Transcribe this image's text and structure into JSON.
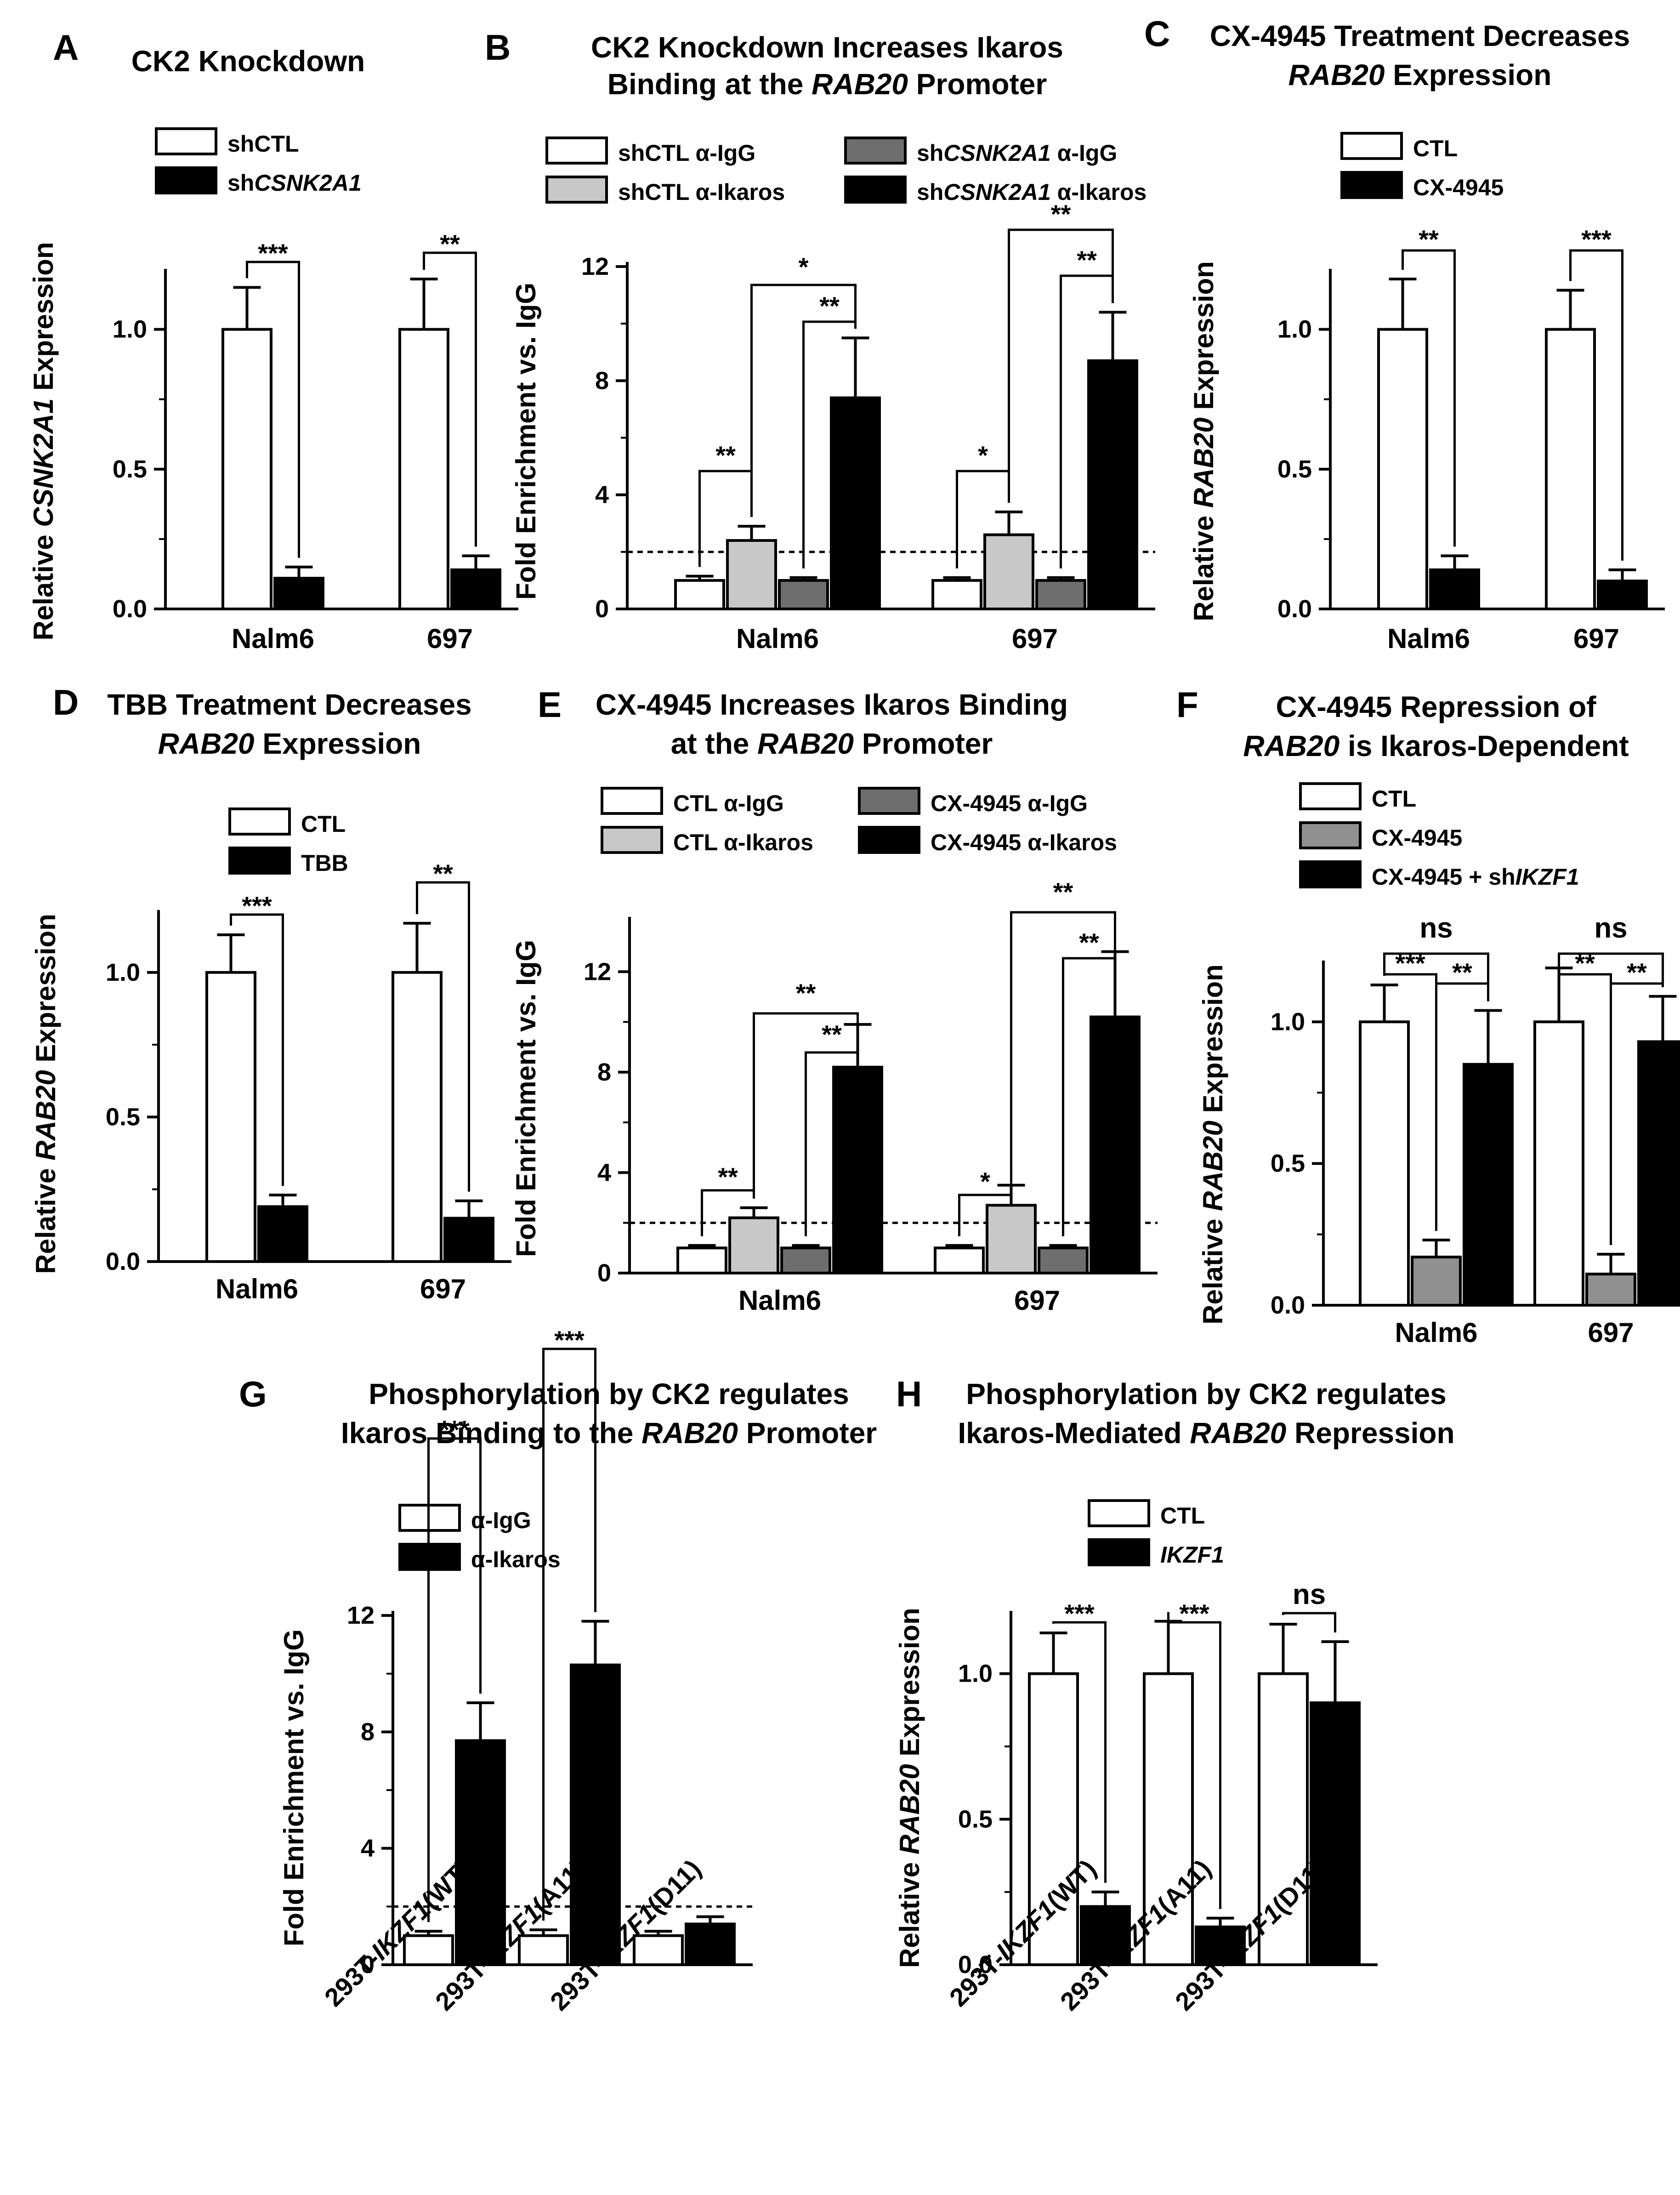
{
  "figure": {
    "colors": {
      "white": "#ffffff",
      "light_gray": "#c8c8c8",
      "dark_gray": "#6e6e6e",
      "black": "#000000",
      "stroke": "#000000"
    }
  },
  "chart_data": [
    {
      "letter": "A",
      "type": "bar",
      "title": [
        "CK2 Knockdown"
      ],
      "ylabel": "Relative CSNK2A1 Expression",
      "ylim": [
        0,
        1.2
      ],
      "ticks": [
        "0.0",
        "0.5",
        "1.0"
      ],
      "categories": [
        "Nalm6",
        "697"
      ],
      "series": [
        {
          "name": "shCTL",
          "color": "#ffffff",
          "values": [
            1.0,
            1.0
          ],
          "errors": [
            0.15,
            0.18
          ]
        },
        {
          "name": "shCSNK2A1",
          "color": "#000000",
          "values": [
            0.11,
            0.14
          ],
          "errors": [
            0.04,
            0.05
          ]
        }
      ],
      "significance": [
        "***",
        "**"
      ]
    },
    {
      "letter": "B",
      "type": "bar",
      "title": [
        "CK2 Knockdown Increases Ikaros",
        "Binding at the RAB20 Promoter"
      ],
      "ylabel": "Fold Enrichment vs. IgG",
      "ylim": [
        0,
        12
      ],
      "ticks": [
        "0",
        "4",
        "8",
        "12"
      ],
      "threshold": 2,
      "categories": [
        "Nalm6",
        "697"
      ],
      "series": [
        {
          "name": "shCTL α-IgG",
          "color": "#ffffff",
          "values": [
            1.0,
            1.0
          ],
          "errors": [
            0.15,
            0.1
          ]
        },
        {
          "name": "shCTL α-Ikaros",
          "color": "#c8c8c8",
          "values": [
            2.4,
            2.6
          ],
          "errors": [
            0.5,
            0.8
          ]
        },
        {
          "name": "shCSNK2A1 α-IgG",
          "color": "#6e6e6e",
          "values": [
            1.0,
            1.0
          ],
          "errors": [
            0.1,
            0.1
          ]
        },
        {
          "name": "shCSNK2A1 α-Ikaros",
          "color": "#000000",
          "values": [
            7.4,
            8.7
          ],
          "errors": [
            2.1,
            1.7
          ]
        }
      ],
      "significance": [
        "**",
        "*",
        "**",
        "*",
        "**",
        "**"
      ]
    },
    {
      "letter": "C",
      "type": "bar",
      "title": [
        "CX-4945 Treatment Decreases",
        "RAB20 Expression"
      ],
      "ylabel": "Relative RAB20 Expression",
      "ylim": [
        0,
        1.2
      ],
      "ticks": [
        "0.0",
        "0.5",
        "1.0"
      ],
      "categories": [
        "Nalm6",
        "697"
      ],
      "series": [
        {
          "name": "CTL",
          "color": "#ffffff",
          "values": [
            1.0,
            1.0
          ],
          "errors": [
            0.18,
            0.14
          ]
        },
        {
          "name": "CX-4945",
          "color": "#000000",
          "values": [
            0.14,
            0.1
          ],
          "errors": [
            0.05,
            0.04
          ]
        }
      ],
      "significance": [
        "**",
        "***"
      ]
    },
    {
      "letter": "D",
      "type": "bar",
      "title": [
        "TBB Treatment Decreases",
        "RAB20 Expression"
      ],
      "ylabel": "Relative RAB20 Expression",
      "ylim": [
        0,
        1.2
      ],
      "ticks": [
        "0.0",
        "0.5",
        "1.0"
      ],
      "categories": [
        "Nalm6",
        "697"
      ],
      "series": [
        {
          "name": "CTL",
          "color": "#ffffff",
          "values": [
            1.0,
            1.0
          ],
          "errors": [
            0.13,
            0.17
          ]
        },
        {
          "name": "TBB",
          "color": "#000000",
          "values": [
            0.19,
            0.15
          ],
          "errors": [
            0.04,
            0.06
          ]
        }
      ],
      "significance": [
        "***",
        "**"
      ]
    },
    {
      "letter": "E",
      "type": "bar",
      "title": [
        "CX-4945 Increases Ikaros Binding",
        "at the RAB20 Promoter"
      ],
      "ylabel": "Fold Enrichment vs. IgG",
      "ylim": [
        0,
        14
      ],
      "ticks": [
        "0",
        "4",
        "8",
        "12"
      ],
      "threshold": 2,
      "categories": [
        "Nalm6",
        "697"
      ],
      "series": [
        {
          "name": "CTL α-IgG",
          "color": "#ffffff",
          "values": [
            1.0,
            1.0
          ],
          "errors": [
            0.1,
            0.1
          ]
        },
        {
          "name": "CTL α-Ikaros",
          "color": "#c8c8c8",
          "values": [
            2.2,
            2.7
          ],
          "errors": [
            0.4,
            0.8
          ]
        },
        {
          "name": "CX-4945 α-IgG",
          "color": "#6e6e6e",
          "values": [
            1.0,
            1.0
          ],
          "errors": [
            0.1,
            0.1
          ]
        },
        {
          "name": "CX-4945 α-Ikaros",
          "color": "#000000",
          "values": [
            8.2,
            10.2
          ],
          "errors": [
            1.7,
            2.6
          ]
        }
      ],
      "significance": [
        "**",
        "**",
        "**",
        "*",
        "**",
        "**"
      ]
    },
    {
      "letter": "F",
      "type": "bar",
      "title": [
        "CX-4945 Repression of",
        "RAB20 is Ikaros-Dependent"
      ],
      "ylabel": "Relative RAB20 Expression",
      "ylim": [
        0,
        1.2
      ],
      "ticks": [
        "0.0",
        "0.5",
        "1.0"
      ],
      "categories": [
        "Nalm6",
        "697"
      ],
      "series": [
        {
          "name": "CTL",
          "color": "#ffffff",
          "values": [
            1.0,
            1.0
          ],
          "errors": [
            0.13,
            0.19
          ]
        },
        {
          "name": "CX-4945",
          "color": "#909090",
          "values": [
            0.17,
            0.11
          ],
          "errors": [
            0.06,
            0.07
          ]
        },
        {
          "name": "CX-4945 + shIKZF1",
          "color": "#000000",
          "values": [
            0.85,
            0.93
          ],
          "errors": [
            0.19,
            0.16
          ]
        }
      ],
      "significance": [
        "ns",
        "***",
        "**",
        "ns",
        "**",
        "**"
      ]
    },
    {
      "letter": "G",
      "type": "bar",
      "title": [
        "Phosphorylation by CK2 regulates",
        "Ikaros Binding to the RAB20 Promoter"
      ],
      "ylabel": "Fold Enrichment vs. IgG",
      "ylim": [
        0,
        12
      ],
      "ticks": [
        "0",
        "4",
        "8",
        "12"
      ],
      "threshold": 2,
      "categories": [
        "293T-IKZF1(WT)",
        "293T-IKZF1(A11)",
        "293T-IKZF1(D11)"
      ],
      "series": [
        {
          "name": "α-IgG",
          "color": "#ffffff",
          "values": [
            1.0,
            1.0,
            1.0
          ],
          "errors": [
            0.15,
            0.2,
            0.15
          ]
        },
        {
          "name": "α-Ikaros",
          "color": "#000000",
          "values": [
            7.7,
            10.3,
            1.4
          ],
          "errors": [
            1.3,
            1.5,
            0.25
          ]
        }
      ],
      "significance": [
        "***",
        "***"
      ]
    },
    {
      "letter": "H",
      "type": "bar",
      "title": [
        "Phosphorylation by CK2 regulates",
        "Ikaros-Mediated RAB20 Repression"
      ],
      "ylabel": "Relative RAB20 Expression",
      "ylim": [
        0,
        1.2
      ],
      "ticks": [
        "0.0",
        "0.5",
        "1.0"
      ],
      "categories": [
        "293T-IKZF1(WT)",
        "293T-IKZF1(A11)",
        "293T-IKZF1(D11)"
      ],
      "series": [
        {
          "name": "CTL",
          "color": "#ffffff",
          "values": [
            1.0,
            1.0,
            1.0
          ],
          "errors": [
            0.14,
            0.18,
            0.17
          ]
        },
        {
          "name": "IKZF1",
          "color": "#000000",
          "values": [
            0.2,
            0.13,
            0.9
          ],
          "errors": [
            0.05,
            0.03,
            0.21
          ]
        }
      ],
      "significance": [
        "***",
        "***",
        "ns"
      ]
    }
  ]
}
